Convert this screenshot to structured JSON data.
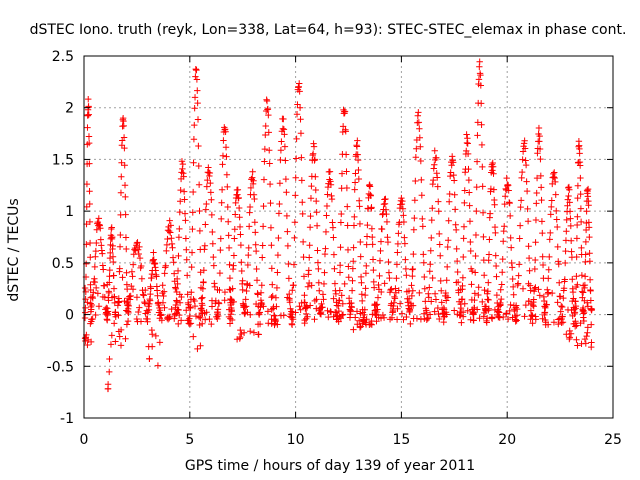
{
  "chart_data": {
    "type": "scatter",
    "title": "dSTEC Iono. truth (reyk, Lon=338, Lat=64, h=93): STEC-STEC_elemax in phase cont.",
    "xlabel": "GPS time / hours of day 139 of year 2011",
    "ylabel": "dSTEC  / TECUs",
    "xlim": [
      0,
      25
    ],
    "ylim": [
      -1,
      2.5
    ],
    "xticks": [
      0,
      5,
      10,
      15,
      20,
      25
    ],
    "xtick_labels": [
      "0",
      "5",
      "10",
      "15",
      "20",
      "25"
    ],
    "yticks": [
      -1,
      -0.5,
      0,
      0.5,
      1,
      1.5,
      2,
      2.5
    ],
    "ytick_labels": [
      "-1",
      "-0.5",
      "0",
      "0.5",
      "1",
      "1.5",
      "2",
      "2.5"
    ],
    "grid": true,
    "marker": "+",
    "color": "#ff0000",
    "arcs": [
      {
        "start": 0.05,
        "end": 0.35,
        "peak": 2.05,
        "min": -0.3
      },
      {
        "start": 0.3,
        "end": 1.1,
        "peak": 0.9,
        "min": -0.05
      },
      {
        "start": 1.1,
        "end": 1.5,
        "peak": 0.8,
        "min": -0.8
      },
      {
        "start": 1.6,
        "end": 2.1,
        "peak": 1.85,
        "min": -0.3
      },
      {
        "start": 2.0,
        "end": 3.0,
        "peak": 0.7,
        "min": -0.1
      },
      {
        "start": 3.0,
        "end": 3.6,
        "peak": 0.55,
        "min": -0.5
      },
      {
        "start": 3.6,
        "end": 4.5,
        "peak": 0.85,
        "min": -0.05
      },
      {
        "start": 4.3,
        "end": 5.0,
        "peak": 1.45,
        "min": -0.1
      },
      {
        "start": 5.0,
        "end": 5.6,
        "peak": 2.35,
        "min": -0.35
      },
      {
        "start": 5.5,
        "end": 6.3,
        "peak": 1.4,
        "min": -0.1
      },
      {
        "start": 6.3,
        "end": 7.0,
        "peak": 1.8,
        "min": -0.05
      },
      {
        "start": 6.9,
        "end": 7.6,
        "peak": 1.2,
        "min": -0.25
      },
      {
        "start": 7.6,
        "end": 8.3,
        "peak": 1.35,
        "min": -0.2
      },
      {
        "start": 8.3,
        "end": 9.0,
        "peak": 2.05,
        "min": -0.1
      },
      {
        "start": 9.0,
        "end": 9.8,
        "peak": 1.85,
        "min": -0.15
      },
      {
        "start": 9.8,
        "end": 10.5,
        "peak": 2.2,
        "min": -0.1
      },
      {
        "start": 10.5,
        "end": 11.2,
        "peak": 1.6,
        "min": -0.05
      },
      {
        "start": 11.2,
        "end": 12.0,
        "peak": 1.35,
        "min": -0.05
      },
      {
        "start": 12.0,
        "end": 12.6,
        "peak": 2.0,
        "min": -0.05
      },
      {
        "start": 12.6,
        "end": 13.2,
        "peak": 1.65,
        "min": -0.15
      },
      {
        "start": 13.2,
        "end": 13.8,
        "peak": 1.25,
        "min": -0.1
      },
      {
        "start": 13.8,
        "end": 14.6,
        "peak": 1.1,
        "min": -0.05
      },
      {
        "start": 14.6,
        "end": 15.4,
        "peak": 1.1,
        "min": -0.05
      },
      {
        "start": 15.4,
        "end": 16.2,
        "peak": 1.9,
        "min": -0.05
      },
      {
        "start": 16.2,
        "end": 17.0,
        "peak": 1.55,
        "min": -0.05
      },
      {
        "start": 17.0,
        "end": 17.8,
        "peak": 1.5,
        "min": -0.05
      },
      {
        "start": 17.8,
        "end": 18.4,
        "peak": 1.7,
        "min": -0.05
      },
      {
        "start": 18.4,
        "end": 19.0,
        "peak": 2.4,
        "min": -0.05
      },
      {
        "start": 19.0,
        "end": 19.6,
        "peak": 1.45,
        "min": -0.05
      },
      {
        "start": 19.6,
        "end": 20.4,
        "peak": 1.3,
        "min": -0.05
      },
      {
        "start": 20.4,
        "end": 21.2,
        "peak": 1.65,
        "min": -0.05
      },
      {
        "start": 21.2,
        "end": 21.8,
        "peak": 1.75,
        "min": -0.05
      },
      {
        "start": 21.8,
        "end": 22.6,
        "peak": 1.35,
        "min": -0.1
      },
      {
        "start": 22.6,
        "end": 23.2,
        "peak": 1.2,
        "min": -0.25
      },
      {
        "start": 23.2,
        "end": 23.6,
        "peak": 1.65,
        "min": -0.3
      },
      {
        "start": 23.6,
        "end": 24.0,
        "peak": 1.2,
        "min": -0.35
      }
    ]
  }
}
